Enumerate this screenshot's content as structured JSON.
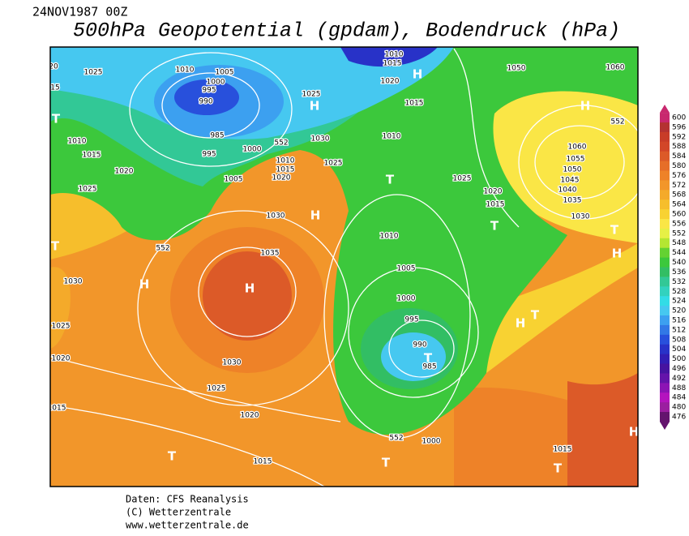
{
  "header": {
    "date": "24NOV1987 00Z",
    "title": "500hPa Geopotential (gpdam), Bodendruck (hPa)"
  },
  "footer": {
    "source": "Daten: CFS Reanalysis",
    "copyright": "(C) Wetterzentrale",
    "url": "www.wetterzentrale.de"
  },
  "colorbar": {
    "labels": [
      600,
      596,
      592,
      588,
      584,
      580,
      576,
      572,
      568,
      564,
      560,
      556,
      552,
      548,
      544,
      540,
      536,
      532,
      528,
      524,
      520,
      516,
      512,
      508,
      504,
      500,
      496,
      492,
      488,
      484,
      480,
      476
    ],
    "colors": [
      "#c8286e",
      "#b43232",
      "#c83c28",
      "#d24628",
      "#dc5a28",
      "#e66e28",
      "#ee8228",
      "#f2962a",
      "#f4aa2a",
      "#f6be2c",
      "#f8d232",
      "#fae646",
      "#e6f046",
      "#b4e632",
      "#64d232",
      "#3cc83c",
      "#32be64",
      "#32c896",
      "#32d2be",
      "#32dce6",
      "#46c8f0",
      "#3ca0f0",
      "#3278e6",
      "#2850dc",
      "#2832c8",
      "#321eb4",
      "#4614a0",
      "#6414aa",
      "#8c14b4",
      "#b414be",
      "#9b1ea0",
      "#64146e"
    ]
  },
  "map": {
    "isobar_labels": [
      "1025",
      "1010",
      "1005",
      "1000",
      "995",
      "990",
      "985",
      "995",
      "1000",
      "1010",
      "1015",
      "1020",
      "1025",
      "1005",
      "1010",
      "1015",
      "1020",
      "1030",
      "1025",
      "1025",
      "1010",
      "1015",
      "1020",
      "1015",
      "1010",
      "1025",
      "1020",
      "1015",
      "1050",
      "1060",
      "1060",
      "1055",
      "1050",
      "1045",
      "1040",
      "1035",
      "1030",
      "1030",
      "1035",
      "1030",
      "1025",
      "1020",
      "1030",
      "1025",
      "1020",
      "1015",
      "1015",
      "1010",
      "1005",
      "1000",
      "995",
      "990",
      "985",
      "1000",
      "1015",
      "552",
      "552",
      "552",
      "552",
      "20",
      "15"
    ],
    "centers": [
      "H",
      "H",
      "H",
      "T",
      "H",
      "T",
      "T",
      "H",
      "H",
      "T",
      "H",
      "T",
      "H",
      "T",
      "T",
      "T",
      "T",
      "H",
      "T"
    ]
  }
}
